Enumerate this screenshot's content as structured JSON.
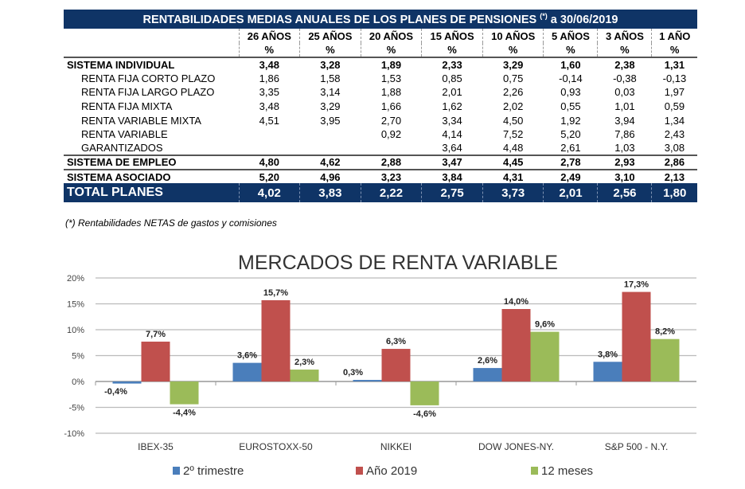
{
  "table": {
    "title": "RENTABILIDADES MEDIAS ANUALES DE LOS PLANES DE PENSIONES",
    "title_sup": "(*)",
    "title_date": "a 30/06/2019",
    "columns": [
      "26 AÑOS",
      "25 AÑOS",
      "20 AÑOS",
      "15 AÑOS",
      "10 AÑOS",
      "5 AÑOS",
      "3 AÑOS",
      "1 AÑO"
    ],
    "unit": "%",
    "rows": [
      {
        "label": "SISTEMA INDIVIDUAL",
        "type": "bold",
        "values": [
          "3,48",
          "3,28",
          "1,89",
          "2,33",
          "3,29",
          "1,60",
          "2,38",
          "1,31"
        ]
      },
      {
        "label": "RENTA FIJA CORTO PLAZO",
        "type": "sub",
        "values": [
          "1,86",
          "1,58",
          "1,53",
          "0,85",
          "0,75",
          "-0,14",
          "-0,38",
          "-0,13"
        ]
      },
      {
        "label": "RENTA FIJA LARGO PLAZO",
        "type": "sub",
        "values": [
          "3,35",
          "3,14",
          "1,88",
          "2,01",
          "2,26",
          "0,93",
          "0,03",
          "1,97"
        ]
      },
      {
        "label": "RENTA FIJA MIXTA",
        "type": "sub",
        "values": [
          "3,48",
          "3,29",
          "1,66",
          "1,62",
          "2,02",
          "0,55",
          "1,01",
          "0,59"
        ]
      },
      {
        "label": "RENTA VARIABLE MIXTA",
        "type": "sub",
        "values": [
          "4,51",
          "3,95",
          "2,70",
          "3,34",
          "4,50",
          "1,92",
          "3,94",
          "1,34"
        ]
      },
      {
        "label": "RENTA VARIABLE",
        "type": "sub",
        "values": [
          "",
          "",
          "0,92",
          "4,14",
          "7,52",
          "5,20",
          "7,86",
          "2,43"
        ]
      },
      {
        "label": "GARANTIZADOS",
        "type": "sub",
        "values": [
          "",
          "",
          "",
          "3,64",
          "4,48",
          "2,61",
          "1,03",
          "3,08"
        ]
      },
      {
        "label": "SISTEMA DE EMPLEO",
        "type": "bold sep",
        "values": [
          "4,80",
          "4,62",
          "2,88",
          "3,47",
          "4,45",
          "2,78",
          "2,93",
          "2,86"
        ]
      },
      {
        "label": "SISTEMA ASOCIADO",
        "type": "bold sep",
        "values": [
          "5,20",
          "4,96",
          "3,23",
          "3,84",
          "4,31",
          "2,49",
          "3,10",
          "2,13"
        ]
      },
      {
        "label": "TOTAL PLANES",
        "type": "total",
        "values": [
          "4,02",
          "3,83",
          "2,22",
          "2,75",
          "3,73",
          "2,01",
          "2,56",
          "1,80"
        ]
      }
    ],
    "note": "(*) Rentabilidades NETAS de gastos y comisiones",
    "header_color": "#0f3466"
  },
  "chart_data": {
    "type": "bar",
    "title": "MERCADOS DE RENTA VARIABLE",
    "categories": [
      "IBEX-35",
      "EUROSTOXX-50",
      "NIKKEI",
      "DOW JONES-NY.",
      "S&P 500 - N.Y."
    ],
    "series": [
      {
        "name": "2º trimestre",
        "color": "#4a7ebb",
        "values": [
          -0.4,
          3.6,
          0.3,
          2.6,
          3.8
        ],
        "labels": [
          "-0,4%",
          "3,6%",
          "0,3%",
          "2,6%",
          "3,8%"
        ]
      },
      {
        "name": "Año 2019",
        "color": "#c0504d",
        "values": [
          7.7,
          15.7,
          6.3,
          14.0,
          17.3
        ],
        "labels": [
          "7,7%",
          "15,7%",
          "6,3%",
          "14,0%",
          "17,3%"
        ]
      },
      {
        "name": "12 meses",
        "color": "#9bbb59",
        "values": [
          -4.4,
          2.3,
          -4.6,
          9.6,
          8.2
        ],
        "labels": [
          "-4,4%",
          "2,3%",
          "-4,6%",
          "9,6%",
          "8,2%"
        ]
      }
    ],
    "ylim": [
      -10,
      20
    ],
    "yticks": [
      -10,
      -5,
      0,
      5,
      10,
      15,
      20
    ],
    "ytick_labels": [
      "-10%",
      "-5%",
      "0%",
      "5%",
      "10%",
      "15%",
      "20%"
    ],
    "grid": true,
    "legend": "bottom"
  }
}
